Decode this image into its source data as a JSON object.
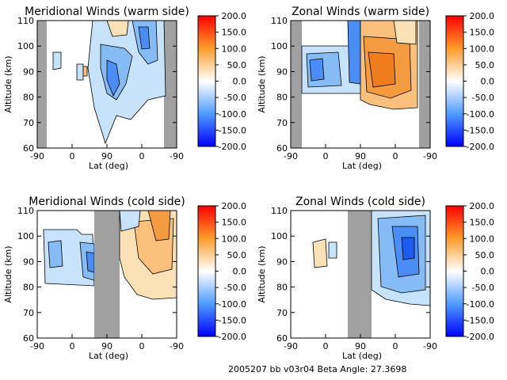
{
  "footer": "2005207 bb v03r04   Beta Angle: 27.3698",
  "colorbar": {
    "ticks": [
      "200.0",
      "150.0",
      "100.0",
      "50.0",
      "0.0",
      "-50.0",
      "-100.0",
      "-150.0",
      "-200.0"
    ],
    "range": [
      -200,
      200
    ]
  },
  "colors": {
    "neg": "#0000ff",
    "zero": "#ffffff",
    "pos": "#ff0000",
    "mask": "#a0a0a0"
  },
  "chart_data": [
    {
      "type": "heatmap",
      "title": "Meridional Winds (warm side)",
      "xlabel": "Lat (deg)",
      "ylabel": "Altitude (km)",
      "xticks": [
        "-90",
        "0",
        "90",
        "0",
        "-90"
      ],
      "yticks": [
        "110",
        "100",
        "90",
        "80",
        "70",
        "60"
      ],
      "ylim": [
        60,
        110
      ],
      "grid": false
    },
    {
      "type": "heatmap",
      "title": "Zonal Winds (warm side)",
      "xlabel": "Lat (deg)",
      "ylabel": "Altitude (km)",
      "xticks": [
        "-90",
        "0",
        "90",
        "0",
        "-90"
      ],
      "yticks": [
        "110",
        "100",
        "90",
        "80",
        "70",
        "60"
      ],
      "ylim": [
        60,
        110
      ],
      "grid": false
    },
    {
      "type": "heatmap",
      "title": "Meridional Winds (cold side)",
      "xlabel": "Lat (deg)",
      "ylabel": "Altitude (km)",
      "xticks": [
        "-90",
        "0",
        "90",
        "0",
        "-90"
      ],
      "yticks": [
        "110",
        "100",
        "90",
        "80",
        "70",
        "60"
      ],
      "ylim": [
        60,
        110
      ],
      "grid": false
    },
    {
      "type": "heatmap",
      "title": "Zonal Winds (cold side)",
      "xlabel": "Lat (deg)",
      "ylabel": "Altitude (km)",
      "xticks": [
        "-90",
        "0",
        "90",
        "0",
        "-90"
      ],
      "yticks": [
        "110",
        "100",
        "90",
        "80",
        "70",
        "60"
      ],
      "ylim": [
        60,
        110
      ],
      "grid": false
    }
  ]
}
